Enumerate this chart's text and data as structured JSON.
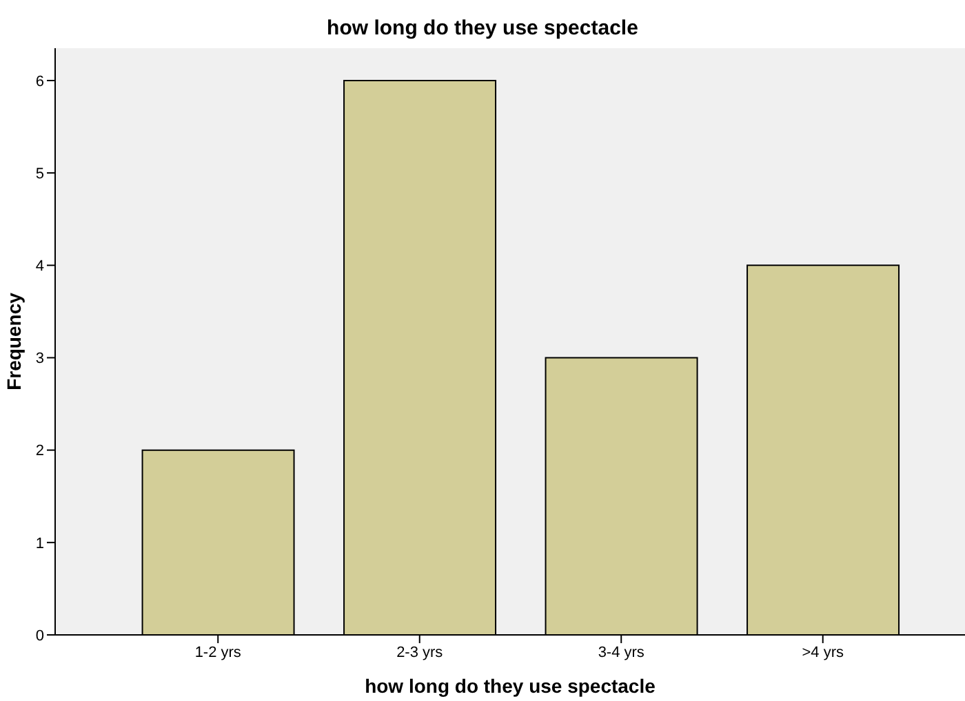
{
  "chart_data": {
    "type": "bar",
    "title": "how long do they use spectacle",
    "xlabel": "how long do they use spectacle",
    "ylabel": "Frequency",
    "categories": [
      "1-2 yrs",
      "2-3 yrs",
      "3-4 yrs",
      ">4 yrs"
    ],
    "values": [
      2,
      6,
      3,
      4
    ],
    "color": "#d3ce98",
    "ylim": [
      0,
      6.35
    ],
    "yticks": [
      0,
      1,
      2,
      3,
      4,
      5,
      6
    ],
    "grid": false,
    "legend": false
  }
}
